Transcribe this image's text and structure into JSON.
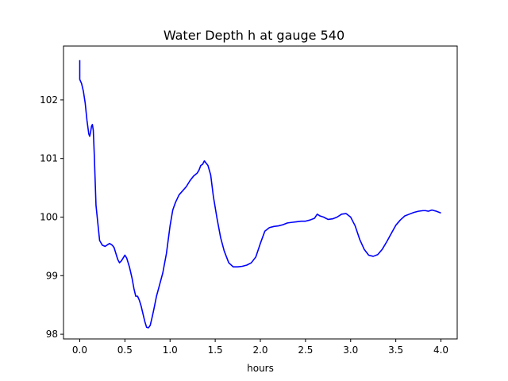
{
  "chart_data": {
    "type": "line",
    "title": "Water Depth h at gauge 540",
    "xlabel": "hours",
    "ylabel": "",
    "xlim": [
      -0.18,
      4.18
    ],
    "ylim": [
      97.92,
      102.92
    ],
    "xticks": [
      0.0,
      0.5,
      1.0,
      1.5,
      2.0,
      2.5,
      3.0,
      3.5,
      4.0
    ],
    "xtick_labels": [
      "0.0",
      "0.5",
      "1.0",
      "1.5",
      "2.0",
      "2.5",
      "3.0",
      "3.5",
      "4.0"
    ],
    "yticks": [
      98,
      99,
      100,
      101,
      102
    ],
    "ytick_labels": [
      "98",
      "99",
      "100",
      "101",
      "102"
    ],
    "grid": false,
    "series": [
      {
        "color": "#0000ff",
        "x": [
          0.0,
          0.0,
          0.02,
          0.04,
          0.06,
          0.08,
          0.1,
          0.11,
          0.12,
          0.13,
          0.14,
          0.15,
          0.16,
          0.18,
          0.2,
          0.22,
          0.25,
          0.28,
          0.3,
          0.33,
          0.36,
          0.38,
          0.4,
          0.42,
          0.44,
          0.46,
          0.48,
          0.5,
          0.52,
          0.55,
          0.58,
          0.6,
          0.62,
          0.64,
          0.66,
          0.68,
          0.7,
          0.72,
          0.74,
          0.76,
          0.78,
          0.8,
          0.82,
          0.85,
          0.88,
          0.92,
          0.96,
          1.0,
          1.03,
          1.06,
          1.1,
          1.14,
          1.18,
          1.22,
          1.26,
          1.3,
          1.32,
          1.34,
          1.36,
          1.38,
          1.4,
          1.42,
          1.45,
          1.48,
          1.52,
          1.56,
          1.6,
          1.65,
          1.7,
          1.75,
          1.8,
          1.85,
          1.9,
          1.95,
          2.0,
          2.05,
          2.1,
          2.15,
          2.2,
          2.25,
          2.3,
          2.35,
          2.4,
          2.45,
          2.5,
          2.55,
          2.6,
          2.63,
          2.66,
          2.7,
          2.75,
          2.8,
          2.85,
          2.9,
          2.95,
          3.0,
          3.05,
          3.1,
          3.15,
          3.2,
          3.25,
          3.3,
          3.35,
          3.4,
          3.45,
          3.5,
          3.55,
          3.6,
          3.65,
          3.7,
          3.75,
          3.8,
          3.83,
          3.86,
          3.9,
          3.95,
          4.0
        ],
        "y": [
          102.68,
          102.35,
          102.28,
          102.15,
          101.95,
          101.65,
          101.42,
          101.38,
          101.45,
          101.55,
          101.58,
          101.48,
          101.1,
          100.2,
          99.9,
          99.6,
          99.52,
          99.5,
          99.52,
          99.55,
          99.52,
          99.48,
          99.38,
          99.28,
          99.22,
          99.25,
          99.3,
          99.35,
          99.3,
          99.15,
          98.95,
          98.78,
          98.65,
          98.65,
          98.58,
          98.48,
          98.35,
          98.22,
          98.12,
          98.11,
          98.15,
          98.28,
          98.42,
          98.65,
          98.82,
          99.05,
          99.38,
          99.85,
          100.12,
          100.25,
          100.38,
          100.45,
          100.52,
          100.62,
          100.7,
          100.75,
          100.8,
          100.88,
          100.9,
          100.96,
          100.92,
          100.88,
          100.72,
          100.35,
          99.98,
          99.65,
          99.42,
          99.22,
          99.15,
          99.15,
          99.16,
          99.18,
          99.22,
          99.32,
          99.55,
          99.76,
          99.82,
          99.84,
          99.85,
          99.87,
          99.9,
          99.91,
          99.92,
          99.93,
          99.93,
          99.95,
          99.98,
          100.05,
          100.02,
          100.0,
          99.96,
          99.97,
          100.0,
          100.05,
          100.06,
          100.0,
          99.85,
          99.62,
          99.45,
          99.35,
          99.33,
          99.36,
          99.45,
          99.58,
          99.72,
          99.86,
          99.95,
          100.02,
          100.05,
          100.08,
          100.1,
          100.11,
          100.11,
          100.1,
          100.12,
          100.1,
          100.07
        ]
      }
    ]
  }
}
